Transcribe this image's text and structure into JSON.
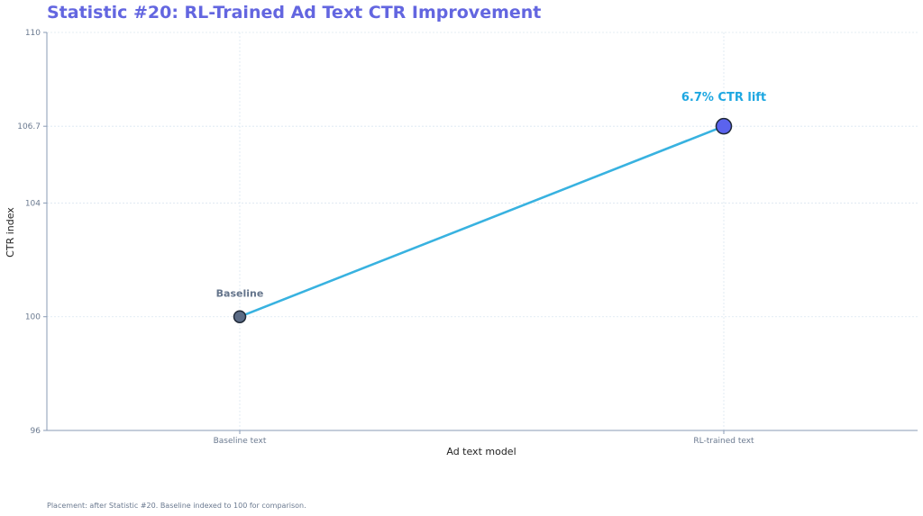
{
  "chart_data": {
    "type": "line",
    "title": "Statistic #20: RL-Trained Ad Text CTR Improvement",
    "xlabel": "Ad text model",
    "ylabel": "CTR index",
    "categories": [
      "Baseline text",
      "RL-trained text"
    ],
    "series": [
      {
        "values": [
          100,
          106.7
        ]
      }
    ],
    "yticks": [
      96,
      100,
      104,
      106.7,
      110
    ],
    "ytick_labels": [
      "96",
      "100",
      "104",
      "106.7",
      "110"
    ],
    "ylim": [
      96,
      110
    ],
    "grid": true,
    "annotations": [
      {
        "text": "Baseline",
        "point_index": 0
      },
      {
        "text": "6.7% CTR lift",
        "point_index": 1
      }
    ],
    "footnote": "Placement: after Statistic #20. Baseline indexed to 100 for comparison."
  },
  "colors": {
    "title": "#6366e0",
    "line": "#38b2e0",
    "baseline_marker": "#5b6b85",
    "rl_marker": "#5b63ee",
    "marker_edge": "#1f2937",
    "baseline_label": "#64748b",
    "lift_label": "#1ea7e1",
    "grid": "#dbe6f0",
    "axis": "#8a9bb5",
    "tick_text": "#6b7a90",
    "axis_label": "#222222"
  }
}
